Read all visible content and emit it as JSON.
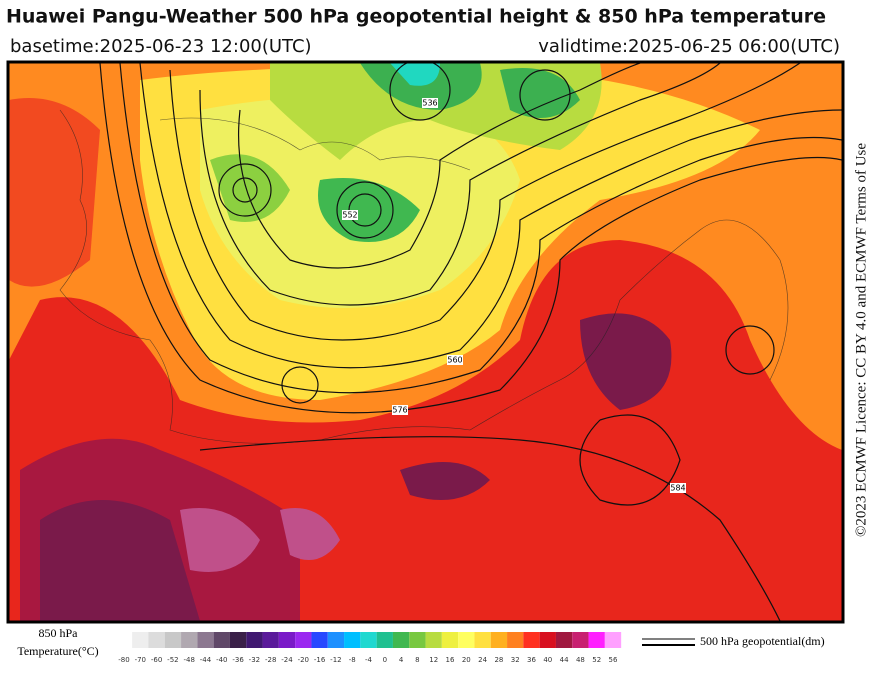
{
  "header": {
    "title": "Huawei Pangu-Weather 500 hPa geopotential height & 850 hPa temperature",
    "basetime": "basetime:2025-06-23 12:00(UTC)",
    "validtime": "validtime:2025-06-25 06:00(UTC)"
  },
  "license": "©2023 ECMWF Licence: CC BY 4.0 and ECMWF Terms of Use",
  "colorbar": {
    "title_line1": "850 hPa",
    "title_line2": "Temperature(°C)",
    "ticks": [
      -80,
      -70,
      -60,
      -52,
      -48,
      -44,
      -40,
      -36,
      -32,
      -28,
      -24,
      -20,
      -16,
      -12,
      -8,
      -4,
      0,
      4,
      8,
      12,
      16,
      20,
      24,
      28,
      32,
      36,
      40,
      44,
      48,
      52,
      56
    ],
    "colors": [
      "#eeeeee",
      "#dcdcdc",
      "#c8c8c8",
      "#b0a8b0",
      "#8c7890",
      "#604868",
      "#3a2048",
      "#401870",
      "#5a1a9a",
      "#7a1ac8",
      "#9a28f0",
      "#2848ff",
      "#1e90ff",
      "#00bfff",
      "#20d8d0",
      "#20c090",
      "#40b850",
      "#78c840",
      "#b8dc40",
      "#eef040",
      "#ffff60",
      "#ffe040",
      "#ffb020",
      "#ff8020",
      "#ff3020",
      "#d81020",
      "#a01840",
      "#c82070",
      "#ff20ff",
      "#ffa0ff"
    ]
  },
  "legend": {
    "label": "500 hPa geopotential(dm)"
  },
  "contour_labels": [
    "536",
    "552",
    "560",
    "576",
    "584"
  ]
}
